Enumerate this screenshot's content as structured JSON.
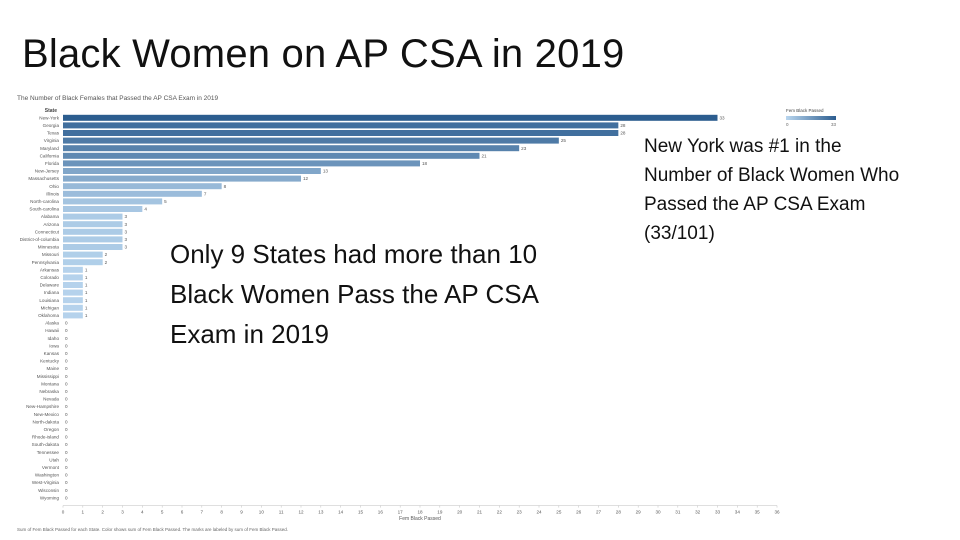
{
  "slide": {
    "title": "Black Women on AP CSA in 2019",
    "annotation_left": "Only 9 States had more than 10 Black Women Pass the AP CSA Exam in 2019",
    "annotation_right": "New York was #1 in the Number of Black Women Who Passed the AP CSA Exam (33/101)"
  },
  "chart_data": {
    "type": "bar",
    "orientation": "horizontal",
    "title": "The Number of Black Females that Passed the AP CSA Exam in 2019",
    "category_header": "State",
    "xlabel": "Fem Black Passed",
    "xlim": [
      0,
      36
    ],
    "x_ticks": [
      0,
      1,
      2,
      3,
      4,
      5,
      6,
      7,
      8,
      9,
      10,
      11,
      12,
      13,
      14,
      15,
      16,
      17,
      18,
      19,
      20,
      21,
      22,
      23,
      24,
      25,
      26,
      27,
      28,
      29,
      30,
      31,
      32,
      33,
      34,
      35,
      36
    ],
    "legend": {
      "title": "Fem Black Passed",
      "min_label": "0",
      "max_label": "33",
      "position": "top-right"
    },
    "footnote": "Sum of Fem Black Passed for each State.  Color shows sum of Fem Black Passed.  The marks are labeled by sum of Fem Black Passed.",
    "colors": {
      "low": "#b9d6ef",
      "high": "#2c5d8f"
    },
    "categories": [
      "New-York",
      "Georgia",
      "Texas",
      "Virginia",
      "Maryland",
      "California",
      "Florida",
      "New-Jersey",
      "Massachusetts",
      "Ohio",
      "Illinois",
      "North-carolina",
      "South-carolina",
      "Alabama",
      "Arizona",
      "Connecticut",
      "District-of-columbia",
      "Minnesota",
      "Missouri",
      "Pennsylvania",
      "Arkansas",
      "Colorado",
      "Delaware",
      "Indiana",
      "Louisiana",
      "Michigan",
      "Oklahoma",
      "Alaska",
      "Hawaii",
      "Idaho",
      "Iowa",
      "Kansas",
      "Kentucky",
      "Maine",
      "Mississippi",
      "Montana",
      "Nebraska",
      "Nevada",
      "New-Hampshire",
      "New-Mexico",
      "North-dakota",
      "Oregon",
      "Rhode-island",
      "South-dakota",
      "Tennessee",
      "Utah",
      "Vermont",
      "Washington",
      "West-Virginia",
      "Wisconsin",
      "Wyoming"
    ],
    "values": [
      33,
      28,
      28,
      25,
      23,
      21,
      18,
      13,
      12,
      8,
      7,
      5,
      4,
      3,
      3,
      3,
      3,
      3,
      2,
      2,
      1,
      1,
      1,
      1,
      1,
      1,
      1,
      0,
      0,
      0,
      0,
      0,
      0,
      0,
      0,
      0,
      0,
      0,
      0,
      0,
      0,
      0,
      0,
      0,
      0,
      0,
      0,
      0,
      0,
      0,
      0
    ]
  }
}
